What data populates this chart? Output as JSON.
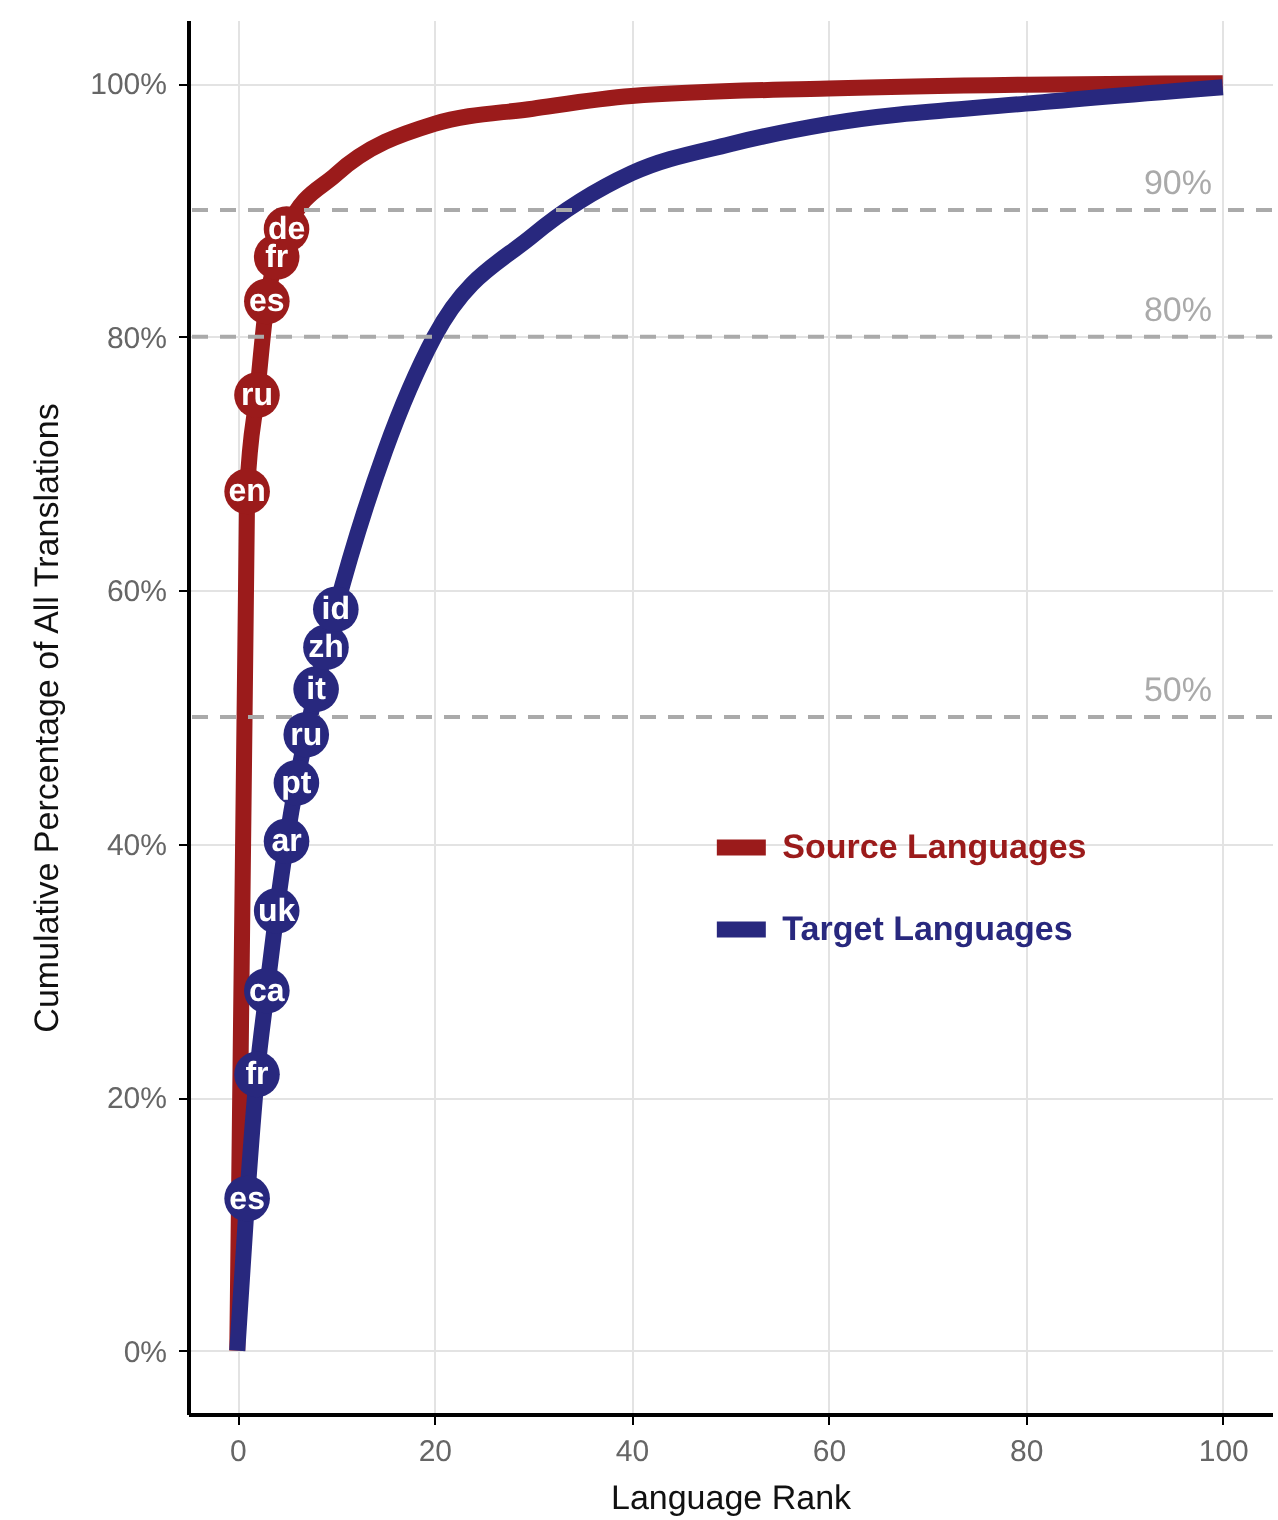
{
  "chart_data": {
    "type": "line",
    "xlabel": "Language Rank",
    "ylabel": "Cumulative Percentage of All Translations",
    "xlim": [
      -5,
      105
    ],
    "ylim": [
      -5,
      105
    ],
    "xticks": [
      0,
      20,
      40,
      60,
      80,
      100
    ],
    "yticks": [
      {
        "value": 0,
        "label": "0%"
      },
      {
        "value": 20,
        "label": "20%"
      },
      {
        "value": 40,
        "label": "40%"
      },
      {
        "value": 60,
        "label": "60%"
      },
      {
        "value": 80,
        "label": "80%"
      },
      {
        "value": 100,
        "label": "100%"
      }
    ],
    "grid": true,
    "legend": "right",
    "line_style": "solid",
    "series": [
      {
        "name": "Source Languages",
        "color": "#9b1b1b",
        "x": [
          0,
          1,
          2,
          3,
          4,
          5,
          10,
          20,
          30,
          40,
          60,
          80,
          100
        ],
        "values": [
          0,
          67.8,
          75.4,
          82.8,
          86.3,
          88.5,
          92.8,
          96.8,
          98,
          99,
          99.6,
          99.9,
          100
        ]
      },
      {
        "name": "Target Languages",
        "color": "#28287e",
        "x": [
          0,
          1,
          2,
          3,
          4,
          5,
          6,
          7,
          8,
          9,
          10,
          15,
          20,
          30,
          40,
          50,
          60,
          80,
          100
        ],
        "values": [
          0,
          12,
          21.8,
          28.4,
          34.7,
          40.2,
          44.8,
          48.6,
          52.2,
          55.5,
          58.5,
          71,
          80,
          88,
          92.9,
          95.2,
          96.8,
          98.4,
          99.7
        ]
      }
    ],
    "ref_lines": [
      {
        "axis": "y",
        "value": 50,
        "label": "50%",
        "color": "#aaaaaa",
        "line_style": "dashed"
      },
      {
        "axis": "y",
        "value": 80,
        "label": "80%",
        "color": "#aaaaaa",
        "line_style": "dashed"
      },
      {
        "axis": "y",
        "value": 90,
        "label": "90%",
        "color": "#aaaaaa",
        "line_style": "dashed"
      }
    ],
    "annotations": [
      {
        "text": "en",
        "x": 1,
        "y": 67.8
      },
      {
        "text": "ru",
        "x": 2,
        "y": 75.4
      },
      {
        "text": "es",
        "x": 3,
        "y": 82.8
      },
      {
        "text": "fr",
        "x": 4,
        "y": 86.3
      },
      {
        "text": "de",
        "x": 5,
        "y": 88.5
      },
      {
        "text": "es",
        "x": 1,
        "y": 12
      },
      {
        "text": "fr",
        "x": 2,
        "y": 21.8
      },
      {
        "text": "ca",
        "x": 3,
        "y": 28.4
      },
      {
        "text": "uk",
        "x": 4,
        "y": 34.7
      },
      {
        "text": "ar",
        "x": 5,
        "y": 40.2
      },
      {
        "text": "pt",
        "x": 6,
        "y": 44.8
      },
      {
        "text": "ru",
        "x": 7,
        "y": 48.6
      },
      {
        "text": "it",
        "x": 8,
        "y": 52.2
      },
      {
        "text": "zh",
        "x": 9,
        "y": 55.5
      },
      {
        "text": "id",
        "x": 10,
        "y": 58.5
      }
    ]
  }
}
